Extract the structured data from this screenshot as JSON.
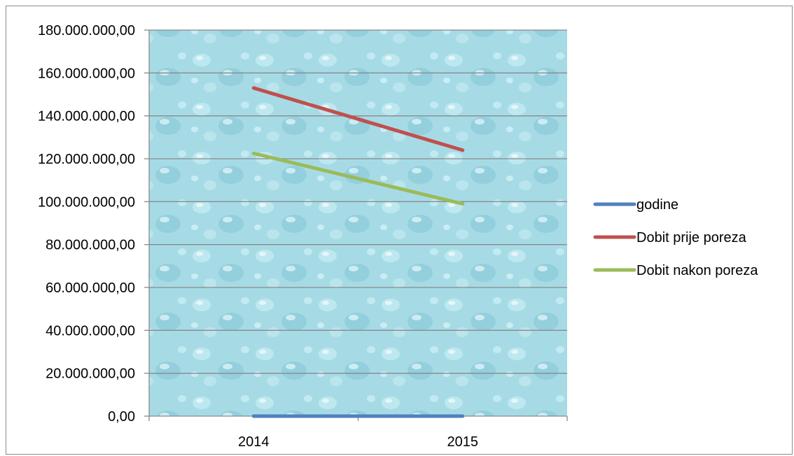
{
  "chart_data": {
    "type": "line",
    "title": "",
    "xlabel": "",
    "ylabel": "",
    "categories": [
      "2014",
      "2015"
    ],
    "ylim": [
      0,
      180000000
    ],
    "ytick_step": 20000000,
    "yticks": [
      "0,00",
      "20.000.000,00",
      "40.000.000,00",
      "60.000.000,00",
      "80.000.000,00",
      "100.000.000,00",
      "120.000.000,00",
      "140.000.000,00",
      "160.000.000,00",
      "180.000.000,00"
    ],
    "grid": true,
    "legend_position": "right",
    "series": [
      {
        "name": "godine",
        "color": "#4f81bd",
        "values": [
          2014,
          2015
        ]
      },
      {
        "name": "Dobit prije poreza",
        "color": "#c0504d",
        "values": [
          153000000,
          124000000
        ]
      },
      {
        "name": "Dobit nakon poreza",
        "color": "#9bbb59",
        "values": [
          122500000,
          99000000
        ]
      }
    ],
    "plot_background": "#a6dbe6"
  }
}
